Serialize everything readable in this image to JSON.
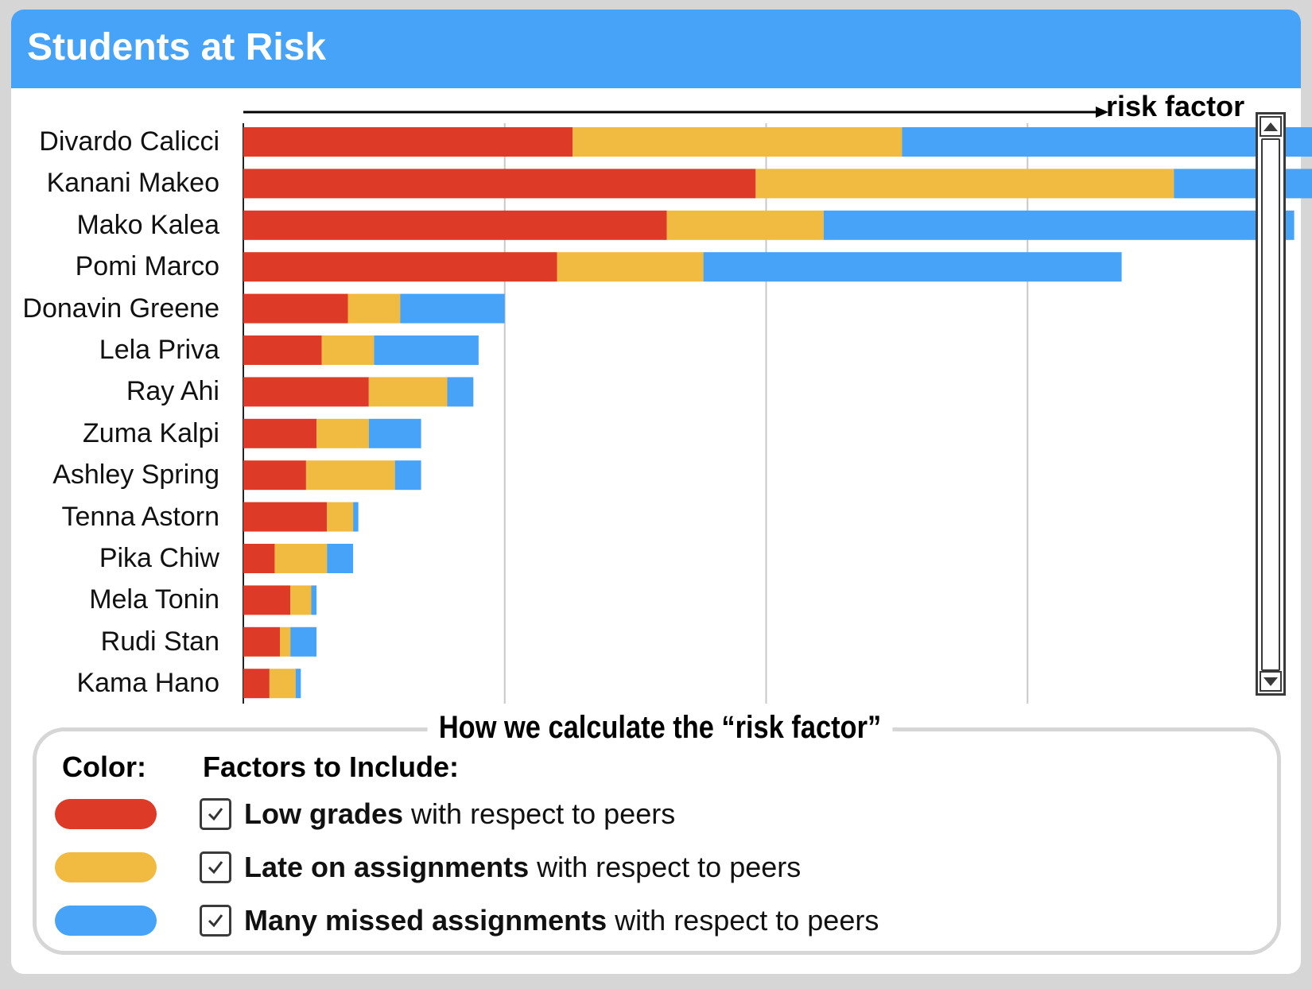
{
  "header": {
    "title": "Students at Risk"
  },
  "chart_data": {
    "type": "bar",
    "orientation": "horizontal",
    "stacked": true,
    "axis_title": "risk factor",
    "xlim": [
      0,
      7.5
    ],
    "grid": true,
    "categories": [
      "Divardo Calicci",
      "Kanani Makeo",
      "Mako Kalea",
      "Pomi Marco",
      "Donavin Greene",
      "Lela Priva",
      "Ray Ahi",
      "Zuma Kalpi",
      "Ashley Spring",
      "Tenna Astorn",
      "Pika Chiw",
      "Mela Tonin",
      "Rudi Stan",
      "Kama Hano"
    ],
    "series": [
      {
        "name": "Low grades",
        "color": "#dd3b27",
        "values": [
          1.26,
          1.96,
          1.62,
          1.2,
          0.4,
          0.3,
          0.48,
          0.28,
          0.24,
          0.32,
          0.12,
          0.18,
          0.14,
          0.1
        ]
      },
      {
        "name": "Late on assignments",
        "color": "#f0bb40",
        "values": [
          1.26,
          1.6,
          0.6,
          0.56,
          0.2,
          0.2,
          0.3,
          0.2,
          0.34,
          0.1,
          0.2,
          0.08,
          0.04,
          0.1
        ]
      },
      {
        "name": "Many missed assignments",
        "color": "#46a3f7",
        "values": [
          2.88,
          0.96,
          1.8,
          1.6,
          0.4,
          0.4,
          0.1,
          0.2,
          0.1,
          0.02,
          0.1,
          0.02,
          0.1,
          0.02
        ]
      }
    ]
  },
  "legend": {
    "title": "How we calculate the “risk factor”",
    "color_heading": "Color:",
    "factors_heading": "Factors to Include:",
    "items": [
      {
        "bold": "Low grades",
        "rest": " with respect to peers",
        "color": "#dd3b27",
        "checked": true
      },
      {
        "bold": "Late on assignments",
        "rest": " with respect to peers",
        "color": "#f0bb40",
        "checked": true
      },
      {
        "bold": "Many missed assignments",
        "rest": " with respect to peers",
        "color": "#46a3f7",
        "checked": true
      }
    ]
  }
}
